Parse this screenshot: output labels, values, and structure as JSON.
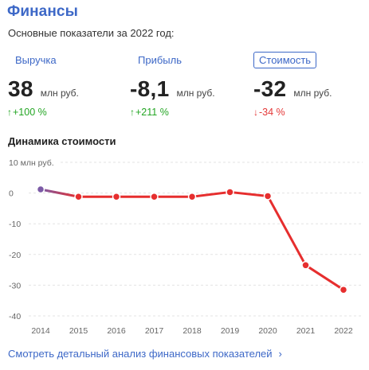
{
  "header": {
    "title": "Финансы",
    "subtitle": "Основные показатели за 2022 год:"
  },
  "metrics": [
    {
      "tab_label": "Выручка",
      "value": "38",
      "unit": "млн руб.",
      "change_arrow": "↑",
      "change": "+100 %",
      "direction": "up",
      "active": false
    },
    {
      "tab_label": "Прибыль",
      "value": "-8,1",
      "unit": "млн руб.",
      "change_arrow": "↑",
      "change": "+211 %",
      "direction": "up",
      "active": false
    },
    {
      "tab_label": "Стоимость",
      "value": "-32",
      "unit": "млн руб.",
      "change_arrow": "↓",
      "change": "-34 %",
      "direction": "down",
      "active": true
    }
  ],
  "chart_section_title": "Динамика стоимости",
  "chart_data": {
    "type": "line",
    "unit_label": "10 млн руб.",
    "x": [
      "2014",
      "2015",
      "2016",
      "2017",
      "2018",
      "2019",
      "2020",
      "2021",
      "2022"
    ],
    "series": [
      {
        "values": [
          1.2,
          -1.2,
          -1.2,
          -1.2,
          -1.2,
          0.3,
          -1.0,
          -23.5,
          -31.5
        ]
      }
    ],
    "yticks": [
      "0",
      "-10",
      "-20",
      "-30",
      "-40"
    ],
    "ylim": [
      -40,
      10
    ],
    "grid": "horizontal dashed",
    "colors": {
      "start": "#7b5aa6",
      "line": "#e62e2e",
      "axis_text": "#666666",
      "grid": "#e3e3e3"
    }
  },
  "footer_link": {
    "label": "Смотреть детальный анализ финансовых показателей",
    "chevron": "›"
  }
}
